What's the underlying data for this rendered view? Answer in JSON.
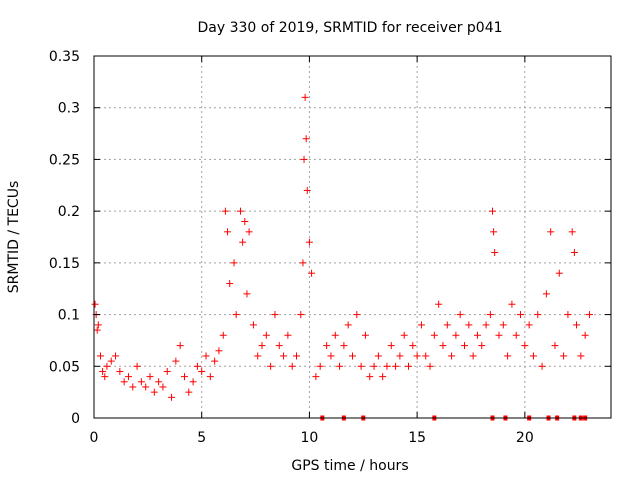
{
  "chart_data": {
    "type": "scatter",
    "title": "Day 330 of 2019, SRMTID for receiver p041",
    "xlabel": "GPS time / hours",
    "ylabel": "SRMTID / TECUs",
    "xlim": [
      0,
      24
    ],
    "ylim": [
      0,
      0.35
    ],
    "x_ticks": [
      0,
      5,
      10,
      15,
      20
    ],
    "x_tick_labels": [
      "0",
      "5",
      "10",
      "15",
      "20"
    ],
    "y_ticks": [
      0,
      0.05,
      0.1,
      0.15,
      0.2,
      0.25,
      0.3,
      0.35
    ],
    "y_tick_labels": [
      "0",
      "0.05",
      "0.1",
      "0.15",
      "0.2",
      "0.25",
      "0.3",
      "0.35"
    ],
    "grid": true,
    "marker": "+",
    "color": "#ff0000",
    "series": [
      {
        "name": "SRMTID",
        "points": [
          [
            0.05,
            0.11
          ],
          [
            0.1,
            0.1
          ],
          [
            0.15,
            0.085
          ],
          [
            0.2,
            0.09
          ],
          [
            0.3,
            0.06
          ],
          [
            0.4,
            0.045
          ],
          [
            0.5,
            0.04
          ],
          [
            0.6,
            0.05
          ],
          [
            0.8,
            0.055
          ],
          [
            1.0,
            0.06
          ],
          [
            1.2,
            0.045
          ],
          [
            1.4,
            0.035
          ],
          [
            1.6,
            0.04
          ],
          [
            1.8,
            0.03
          ],
          [
            2.0,
            0.05
          ],
          [
            2.2,
            0.035
          ],
          [
            2.4,
            0.03
          ],
          [
            2.6,
            0.04
          ],
          [
            2.8,
            0.025
          ],
          [
            3.0,
            0.035
          ],
          [
            3.2,
            0.03
          ],
          [
            3.4,
            0.045
          ],
          [
            3.6,
            0.02
          ],
          [
            3.8,
            0.055
          ],
          [
            4.0,
            0.07
          ],
          [
            4.2,
            0.04
          ],
          [
            4.4,
            0.025
          ],
          [
            4.6,
            0.035
          ],
          [
            4.8,
            0.05
          ],
          [
            5.0,
            0.045
          ],
          [
            5.2,
            0.06
          ],
          [
            5.4,
            0.04
          ],
          [
            5.6,
            0.055
          ],
          [
            5.8,
            0.065
          ],
          [
            6.0,
            0.08
          ],
          [
            6.1,
            0.2
          ],
          [
            6.2,
            0.18
          ],
          [
            6.3,
            0.13
          ],
          [
            6.5,
            0.15
          ],
          [
            6.6,
            0.1
          ],
          [
            6.8,
            0.2
          ],
          [
            6.9,
            0.17
          ],
          [
            7.0,
            0.19
          ],
          [
            7.1,
            0.12
          ],
          [
            7.2,
            0.18
          ],
          [
            7.4,
            0.09
          ],
          [
            7.6,
            0.06
          ],
          [
            7.8,
            0.07
          ],
          [
            8.0,
            0.08
          ],
          [
            8.2,
            0.05
          ],
          [
            8.4,
            0.1
          ],
          [
            8.6,
            0.07
          ],
          [
            8.8,
            0.06
          ],
          [
            9.0,
            0.08
          ],
          [
            9.2,
            0.05
          ],
          [
            9.4,
            0.06
          ],
          [
            9.6,
            0.1
          ],
          [
            9.7,
            0.15
          ],
          [
            9.75,
            0.25
          ],
          [
            9.8,
            0.31
          ],
          [
            9.85,
            0.27
          ],
          [
            9.9,
            0.22
          ],
          [
            10.0,
            0.17
          ],
          [
            10.1,
            0.14
          ],
          [
            10.3,
            0.04
          ],
          [
            10.5,
            0.05
          ],
          [
            10.8,
            0.07
          ],
          [
            11.0,
            0.06
          ],
          [
            11.2,
            0.08
          ],
          [
            11.4,
            0.05
          ],
          [
            11.6,
            0.07
          ],
          [
            11.8,
            0.09
          ],
          [
            12.0,
            0.06
          ],
          [
            12.2,
            0.1
          ],
          [
            12.4,
            0.05
          ],
          [
            12.6,
            0.08
          ],
          [
            12.8,
            0.04
          ],
          [
            13.0,
            0.05
          ],
          [
            13.2,
            0.06
          ],
          [
            13.4,
            0.04
          ],
          [
            13.6,
            0.05
          ],
          [
            13.8,
            0.07
          ],
          [
            14.0,
            0.05
          ],
          [
            14.2,
            0.06
          ],
          [
            14.4,
            0.08
          ],
          [
            14.6,
            0.05
          ],
          [
            14.8,
            0.07
          ],
          [
            15.0,
            0.06
          ],
          [
            15.2,
            0.09
          ],
          [
            15.4,
            0.06
          ],
          [
            15.6,
            0.05
          ],
          [
            15.8,
            0.08
          ],
          [
            16.0,
            0.11
          ],
          [
            16.2,
            0.07
          ],
          [
            16.4,
            0.09
          ],
          [
            16.6,
            0.06
          ],
          [
            16.8,
            0.08
          ],
          [
            17.0,
            0.1
          ],
          [
            17.2,
            0.07
          ],
          [
            17.4,
            0.09
          ],
          [
            17.6,
            0.06
          ],
          [
            17.8,
            0.08
          ],
          [
            18.0,
            0.07
          ],
          [
            18.2,
            0.09
          ],
          [
            18.4,
            0.1
          ],
          [
            18.5,
            0.2
          ],
          [
            18.55,
            0.18
          ],
          [
            18.6,
            0.16
          ],
          [
            18.8,
            0.08
          ],
          [
            19.0,
            0.09
          ],
          [
            19.2,
            0.06
          ],
          [
            19.4,
            0.11
          ],
          [
            19.6,
            0.08
          ],
          [
            19.8,
            0.1
          ],
          [
            20.0,
            0.07
          ],
          [
            20.2,
            0.09
          ],
          [
            20.4,
            0.06
          ],
          [
            20.6,
            0.1
          ],
          [
            20.8,
            0.05
          ],
          [
            21.0,
            0.12
          ],
          [
            21.2,
            0.18
          ],
          [
            21.4,
            0.07
          ],
          [
            21.6,
            0.14
          ],
          [
            21.8,
            0.06
          ],
          [
            22.0,
            0.1
          ],
          [
            22.2,
            0.18
          ],
          [
            22.3,
            0.16
          ],
          [
            22.4,
            0.09
          ],
          [
            22.6,
            0.06
          ],
          [
            22.8,
            0.08
          ],
          [
            23.0,
            0.1
          ]
        ]
      }
    ],
    "gap_markers": [
      10.6,
      11.6,
      12.5,
      15.8,
      18.5,
      19.1,
      20.2,
      21.1,
      21.5,
      22.3,
      22.6,
      22.8
    ]
  }
}
